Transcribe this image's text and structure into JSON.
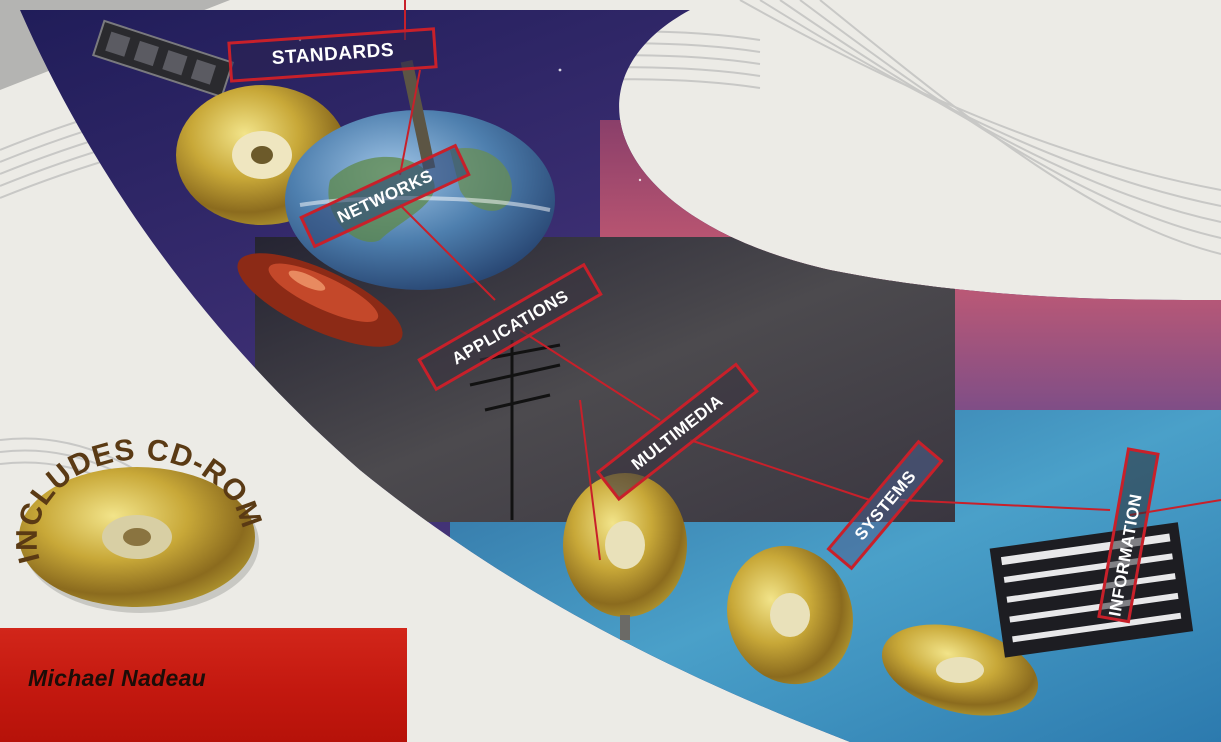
{
  "cover": {
    "tags": [
      "STANDARDS",
      "NETWORKS",
      "APPLICATIONS",
      "MULTIMEDIA",
      "SYSTEMS",
      "INFORMATION"
    ],
    "badge_text": "INCLUDES CD-ROM",
    "author": "Michael Nadeau"
  },
  "colors": {
    "background": "#ecebe6",
    "night_sky": "#2d2a6a",
    "author_box": "#c3180f",
    "tag_border": "#c8202a",
    "water": "#3f92bd"
  }
}
